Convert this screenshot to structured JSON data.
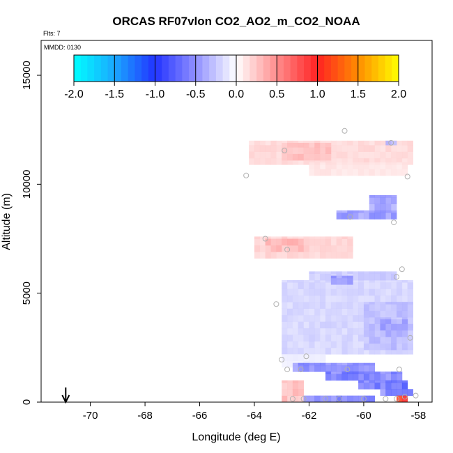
{
  "chart_data": {
    "type": "heatmap",
    "title": "ORCAS RF07vlon CO2_AO2_m_CO2_NOAA",
    "flts_label": "Flts: 7",
    "mmdd_label": "MMDD: 0130",
    "xlabel": "Longitude (deg E)",
    "ylabel": "Altitude (m)",
    "xlim": [
      -71.8,
      -57.5
    ],
    "ylim": [
      0,
      16600
    ],
    "x_ticks": [
      -70,
      -68,
      -66,
      -64,
      -62,
      -60,
      -58
    ],
    "x_tick_labels": [
      "-70",
      "-68",
      "-66",
      "-64",
      "-62",
      "-60",
      "-58"
    ],
    "y_ticks": [
      0,
      5000,
      10000,
      15000
    ],
    "y_tick_labels": [
      "0",
      "5000",
      "10000",
      "15000"
    ],
    "colorbar": {
      "range": [
        -2.0,
        2.0
      ],
      "ticks": [
        -2.0,
        -1.5,
        -1.0,
        -0.5,
        0.0,
        0.5,
        1.0,
        1.5,
        2.0
      ],
      "tick_labels": [
        "-2.0",
        "-1.5",
        "-1.0",
        "-0.5",
        "0.0",
        "0.5",
        "1.0",
        "1.5",
        "2.0"
      ],
      "stops": [
        {
          "value": -2.0,
          "color": "#00ffff"
        },
        {
          "value": -1.5,
          "color": "#1aa8ff"
        },
        {
          "value": -1.0,
          "color": "#2233ff"
        },
        {
          "value": -0.5,
          "color": "#9090ff"
        },
        {
          "value": 0.0,
          "color": "#ffffff"
        },
        {
          "value": 0.5,
          "color": "#ff8c8c"
        },
        {
          "value": 1.0,
          "color": "#ff2222"
        },
        {
          "value": 1.5,
          "color": "#ff8c00"
        },
        {
          "value": 2.0,
          "color": "#ffff00"
        }
      ]
    },
    "arrow_marker": {
      "x": -70.9
    },
    "cell_size": {
      "dx": 0.2,
      "dy": 300
    },
    "patches": [
      {
        "name": "upper-red-layer",
        "x0": -64.2,
        "x1": -58.2,
        "y0": 10900,
        "y1": 12000,
        "v": 0.18
      },
      {
        "name": "upper-red-layer-core",
        "x0": -63.0,
        "x1": -61.2,
        "y0": 11100,
        "y1": 11900,
        "v": 0.28
      },
      {
        "name": "upper-red-tail",
        "x0": -62.0,
        "x1": -58.4,
        "y0": 10400,
        "y1": 11000,
        "v": 0.12
      },
      {
        "name": "blue-streak-upper",
        "x0": -59.2,
        "x1": -58.8,
        "y0": 11800,
        "y1": 12000,
        "v": -0.35
      },
      {
        "name": "mid-blue-tongue",
        "x0": -61.0,
        "x1": -58.8,
        "y0": 8400,
        "y1": 8800,
        "v": -0.5
      },
      {
        "name": "mid-blue-tongue-top",
        "x0": -59.8,
        "x1": -58.8,
        "y0": 8800,
        "y1": 9500,
        "v": -0.45
      },
      {
        "name": "mid-red-layer",
        "x0": -64.0,
        "x1": -60.4,
        "y0": 6600,
        "y1": 7600,
        "v": 0.2
      },
      {
        "name": "mid-red-layer-core",
        "x0": -63.6,
        "x1": -62.0,
        "y0": 6900,
        "y1": 7500,
        "v": 0.3
      },
      {
        "name": "lower-blue-block",
        "x0": -63.0,
        "x1": -58.2,
        "y0": 2200,
        "y1": 5600,
        "v": -0.2
      },
      {
        "name": "lower-blue-top",
        "x0": -62.0,
        "x1": -58.8,
        "y0": 5600,
        "y1": 6000,
        "v": -0.25
      },
      {
        "name": "lower-blue-deep",
        "x0": -61.2,
        "x1": -60.4,
        "y0": 5400,
        "y1": 5800,
        "v": -0.45
      },
      {
        "name": "lower-blue-right",
        "x0": -60.0,
        "x1": -58.2,
        "y0": 2400,
        "y1": 4600,
        "v": -0.3
      },
      {
        "name": "lower-blue-right-deep",
        "x0": -59.4,
        "x1": -58.4,
        "y0": 3000,
        "y1": 3800,
        "v": -0.4
      },
      {
        "name": "pale-gap",
        "x0": -63.0,
        "x1": -61.4,
        "y0": 1600,
        "y1": 2200,
        "v": -0.08
      },
      {
        "name": "blue-band-1",
        "x0": -62.6,
        "x1": -59.6,
        "y0": 1400,
        "y1": 1800,
        "v": -0.55
      },
      {
        "name": "blue-band-2",
        "x0": -61.4,
        "x1": -58.6,
        "y0": 1000,
        "y1": 1400,
        "v": -0.65
      },
      {
        "name": "blue-band-3",
        "x0": -60.2,
        "x1": -58.4,
        "y0": 600,
        "y1": 1000,
        "v": -0.7
      },
      {
        "name": "blue-band-4",
        "x0": -59.4,
        "x1": -58.2,
        "y0": 300,
        "y1": 600,
        "v": -0.6
      },
      {
        "name": "surface-red",
        "x0": -63.0,
        "x1": -62.2,
        "y0": 0,
        "y1": 1000,
        "v": 0.3
      },
      {
        "name": "surface-blue",
        "x0": -62.2,
        "x1": -59.6,
        "y0": 0,
        "y1": 300,
        "v": -0.6
      },
      {
        "name": "surface-red-right",
        "x0": -58.8,
        "x1": -58.4,
        "y0": 0,
        "y1": 300,
        "v": 0.9
      }
    ],
    "sample_points": [
      {
        "x": -60.7,
        "y": 12450
      },
      {
        "x": -59.0,
        "y": 11900
      },
      {
        "x": -62.9,
        "y": 11550
      },
      {
        "x": -64.3,
        "y": 10400
      },
      {
        "x": -58.4,
        "y": 10350
      },
      {
        "x": -60.5,
        "y": 8500
      },
      {
        "x": -58.9,
        "y": 8250
      },
      {
        "x": -63.6,
        "y": 7500
      },
      {
        "x": -62.8,
        "y": 7000
      },
      {
        "x": -58.6,
        "y": 6100
      },
      {
        "x": -58.8,
        "y": 5750
      },
      {
        "x": -63.2,
        "y": 4500
      },
      {
        "x": -58.3,
        "y": 2950
      },
      {
        "x": -62.1,
        "y": 2100
      },
      {
        "x": -63.0,
        "y": 1950
      },
      {
        "x": -62.8,
        "y": 1500
      },
      {
        "x": -62.3,
        "y": 1500
      },
      {
        "x": -60.6,
        "y": 1500
      },
      {
        "x": -58.7,
        "y": 1500
      },
      {
        "x": -62.6,
        "y": 150
      },
      {
        "x": -62.2,
        "y": 150
      },
      {
        "x": -61.4,
        "y": 150
      },
      {
        "x": -60.9,
        "y": 150
      },
      {
        "x": -60.0,
        "y": 150
      },
      {
        "x": -59.2,
        "y": 150
      },
      {
        "x": -58.8,
        "y": 150
      },
      {
        "x": -58.5,
        "y": 250
      },
      {
        "x": -58.1,
        "y": 300
      }
    ]
  }
}
